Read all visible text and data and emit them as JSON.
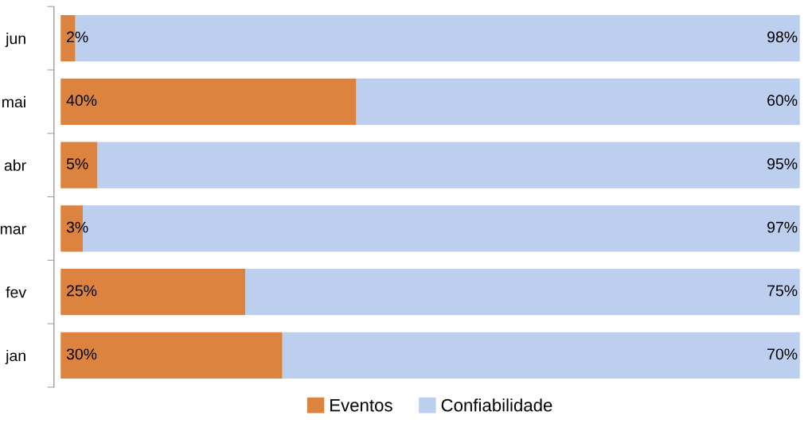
{
  "chart_data": {
    "type": "bar",
    "orientation": "horizontal",
    "stacked": true,
    "legend": "bottom",
    "grid": false,
    "categories": [
      "jun",
      "mai",
      "abr",
      "mar",
      "fev",
      "jan"
    ],
    "series": [
      {
        "name": "Eventos",
        "color": "#dc843f",
        "values": [
          2,
          40,
          5,
          3,
          25,
          30
        ],
        "value_labels": [
          "2%",
          "40%",
          "5%",
          "3%",
          "25%",
          "30%"
        ]
      },
      {
        "name": "Confiabilidade",
        "color": "#bccfee",
        "values": [
          98,
          60,
          95,
          97,
          75,
          70
        ],
        "value_labels": [
          "98%",
          "60%",
          "95%",
          "97%",
          "75%",
          "70%"
        ]
      }
    ]
  }
}
